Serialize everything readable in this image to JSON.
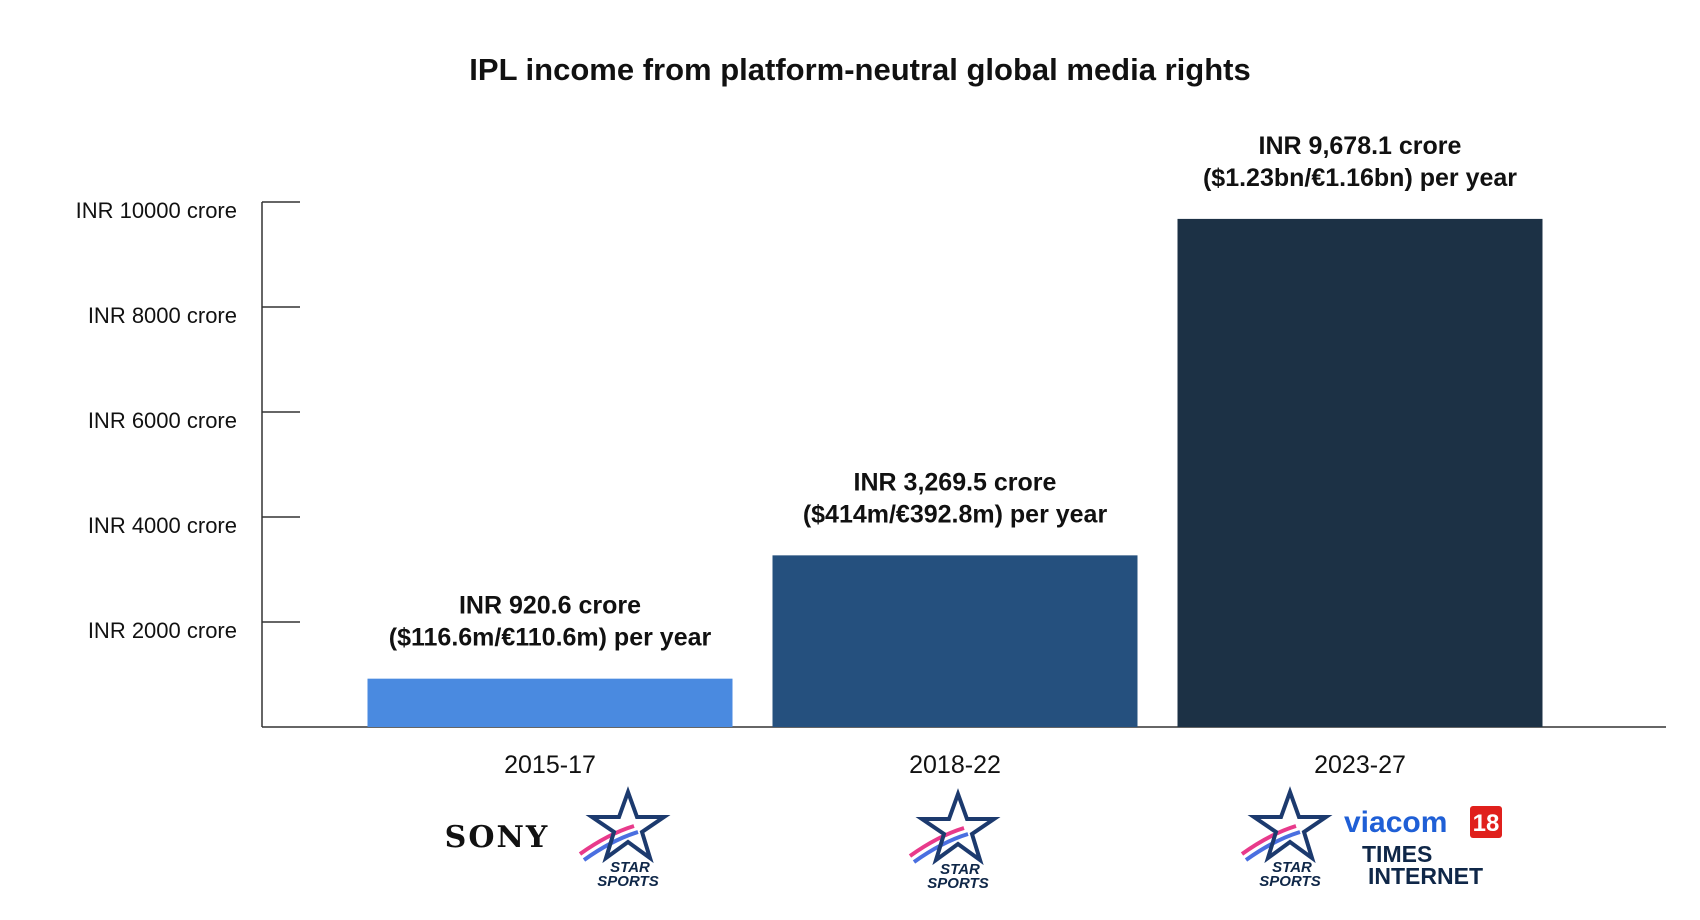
{
  "chart_data": {
    "type": "bar",
    "title": "IPL income from platform-neutral global media rights",
    "categories": [
      "2015-17",
      "2018-22",
      "2023-27"
    ],
    "values": [
      920.6,
      3269.5,
      9678.1
    ],
    "ylim": [
      0,
      10000
    ],
    "yticks": [
      2000,
      4000,
      6000,
      8000,
      10000
    ],
    "ytick_labels": [
      "INR 2000 crore",
      "INR 4000 crore",
      "INR 6000 crore",
      "INR 8000 crore",
      "INR 10000 crore"
    ],
    "bar_colors": [
      "#4a8ae0",
      "#25507e",
      "#1c3145"
    ],
    "data_labels": [
      [
        "INR 920.6 crore",
        "($116.6m/€110.6m) per year"
      ],
      [
        "INR 3,269.5 crore",
        "($414m/€392.8m) per year"
      ],
      [
        "INR 9,678.1 crore",
        "($1.23bn/€1.16bn) per year"
      ]
    ],
    "grid": false,
    "legend": "none"
  },
  "logos": {
    "sony": "SONY",
    "star_text_1": "STAR",
    "star_text_2": "SPORTS",
    "viacom": "viacom",
    "viacom_num": "18",
    "times_1": "TIMES",
    "times_2": "INTERNET"
  }
}
